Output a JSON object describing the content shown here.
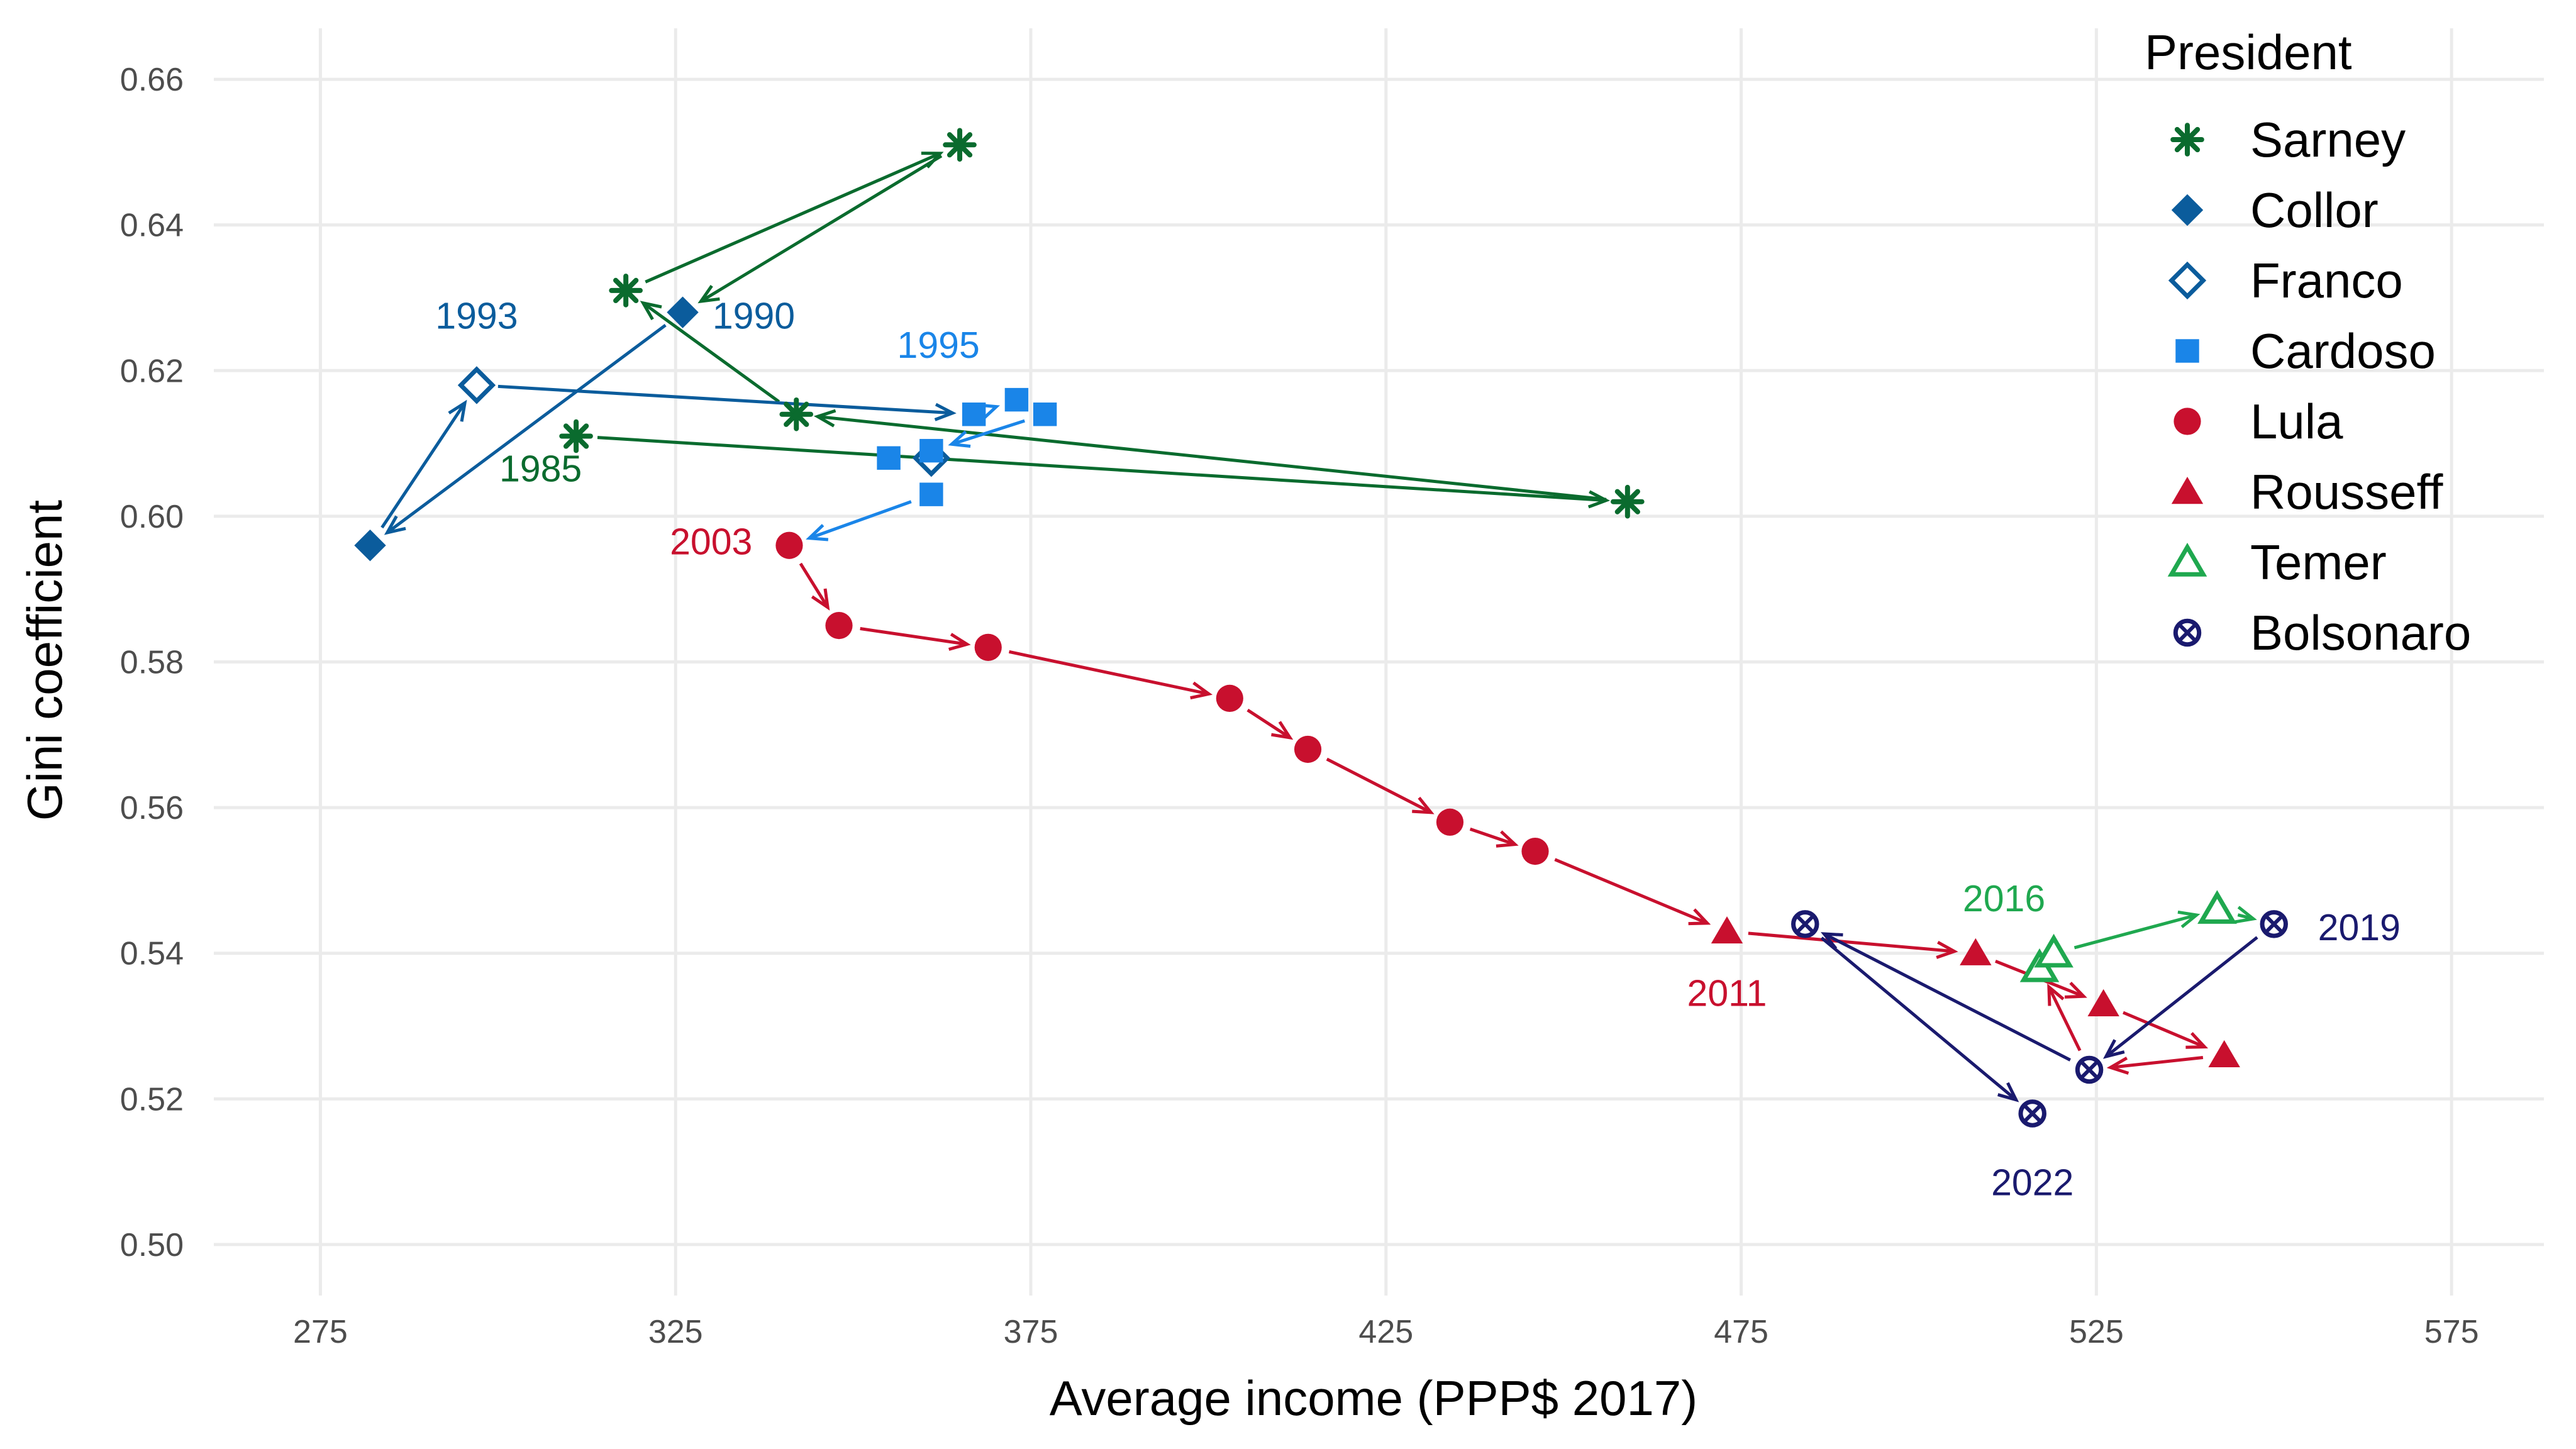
{
  "chart_data": {
    "type": "scatter",
    "xlabel": "Average income (PPP$ 2017)",
    "ylabel": "Gini coefficient",
    "xlim": [
      260,
      588
    ],
    "ylim": [
      0.493,
      0.667
    ],
    "xticks": [
      "275",
      "325",
      "375",
      "425",
      "475",
      "525",
      "575"
    ],
    "yticks": [
      "0.50",
      "0.52",
      "0.54",
      "0.56",
      "0.58",
      "0.60",
      "0.62",
      "0.64",
      "0.66"
    ],
    "grid": true,
    "legend": {
      "title": "President",
      "placement": "top-right"
    },
    "series": [
      {
        "name": "Sarney",
        "color": "#0a6b2e",
        "marker": "asterisk",
        "points": [
          [
            311,
            0.611
          ],
          [
            459,
            0.602
          ],
          [
            342,
            0.614
          ],
          [
            318,
            0.631
          ],
          [
            365,
            0.651
          ]
        ]
      },
      {
        "name": "Collor",
        "color": "#0b5c9c",
        "marker": "diamond-filled",
        "points": [
          [
            326,
            0.628
          ],
          [
            282,
            0.596
          ]
        ]
      },
      {
        "name": "Franco",
        "color": "#0b5c9c",
        "marker": "diamond-open",
        "points": [
          [
            297,
            0.618
          ],
          [
            361,
            0.608
          ]
        ]
      },
      {
        "name": "Cardoso",
        "color": "#1a85e8",
        "marker": "square",
        "points": [
          [
            367,
            0.614
          ],
          [
            373,
            0.616
          ],
          [
            377,
            0.614
          ],
          [
            361,
            0.609
          ],
          [
            355,
            0.608
          ],
          [
            361,
            0.603
          ]
        ]
      },
      {
        "name": "Lula",
        "color": "#c8102e",
        "marker": "circle",
        "points": [
          [
            341,
            0.596
          ],
          [
            348,
            0.585
          ],
          [
            369,
            0.582
          ],
          [
            403,
            0.575
          ],
          [
            414,
            0.568
          ],
          [
            434,
            0.558
          ],
          [
            446,
            0.554
          ]
        ]
      },
      {
        "name": "Rousseff",
        "color": "#c8102e",
        "marker": "triangle-filled",
        "points": [
          [
            473,
            0.543
          ],
          [
            508,
            0.54
          ],
          [
            526,
            0.533
          ],
          [
            543,
            0.526
          ]
        ]
      },
      {
        "name": "Temer",
        "color": "#1fa84f",
        "marker": "triangle-open",
        "points": [
          [
            517,
            0.538
          ],
          [
            519,
            0.54
          ],
          [
            542,
            0.546
          ]
        ]
      },
      {
        "name": "Bolsonaro",
        "color": "#1a1a6e",
        "marker": "circle-x",
        "points": [
          [
            550,
            0.544
          ],
          [
            524,
            0.524
          ],
          [
            484,
            0.544
          ],
          [
            516,
            0.518
          ]
        ]
      }
    ],
    "arrows": [
      {
        "color": "#0a6b2e",
        "from": [
          311,
          0.611
        ],
        "to": [
          459,
          0.602
        ]
      },
      {
        "color": "#0a6b2e",
        "from": [
          459,
          0.602
        ],
        "to": [
          342,
          0.614
        ]
      },
      {
        "color": "#0a6b2e",
        "from": [
          342,
          0.614
        ],
        "to": [
          318,
          0.631
        ]
      },
      {
        "color": "#0a6b2e",
        "from": [
          318,
          0.631
        ],
        "to": [
          365,
          0.651
        ]
      },
      {
        "color": "#0a6b2e",
        "from": [
          365,
          0.651
        ],
        "to": [
          326,
          0.628
        ]
      },
      {
        "color": "#0b5c9c",
        "from": [
          326,
          0.628
        ],
        "to": [
          282,
          0.596
        ]
      },
      {
        "color": "#0b5c9c",
        "from": [
          282,
          0.596
        ],
        "to": [
          297,
          0.618
        ]
      },
      {
        "color": "#0b5c9c",
        "from": [
          297,
          0.618
        ],
        "to": [
          367,
          0.614
        ]
      },
      {
        "color": "#1a85e8",
        "from": [
          367,
          0.614
        ],
        "to": [
          373,
          0.616
        ]
      },
      {
        "color": "#1a85e8",
        "from": [
          377,
          0.614
        ],
        "to": [
          361,
          0.609
        ]
      },
      {
        "color": "#1a85e8",
        "from": [
          361,
          0.603
        ],
        "to": [
          341,
          0.596
        ]
      },
      {
        "color": "#c8102e",
        "from": [
          341,
          0.596
        ],
        "to": [
          348,
          0.585
        ]
      },
      {
        "color": "#c8102e",
        "from": [
          348,
          0.585
        ],
        "to": [
          369,
          0.582
        ]
      },
      {
        "color": "#c8102e",
        "from": [
          369,
          0.582
        ],
        "to": [
          403,
          0.575
        ]
      },
      {
        "color": "#c8102e",
        "from": [
          403,
          0.575
        ],
        "to": [
          414,
          0.568
        ]
      },
      {
        "color": "#c8102e",
        "from": [
          414,
          0.568
        ],
        "to": [
          434,
          0.558
        ]
      },
      {
        "color": "#c8102e",
        "from": [
          434,
          0.558
        ],
        "to": [
          446,
          0.554
        ]
      },
      {
        "color": "#c8102e",
        "from": [
          446,
          0.554
        ],
        "to": [
          473,
          0.543
        ]
      },
      {
        "color": "#c8102e",
        "from": [
          473,
          0.543
        ],
        "to": [
          508,
          0.54
        ]
      },
      {
        "color": "#c8102e",
        "from": [
          508,
          0.54
        ],
        "to": [
          526,
          0.533
        ]
      },
      {
        "color": "#c8102e",
        "from": [
          526,
          0.533
        ],
        "to": [
          543,
          0.526
        ]
      },
      {
        "color": "#c8102e",
        "from": [
          543,
          0.526
        ],
        "to": [
          524,
          0.524
        ]
      },
      {
        "color": "#c8102e",
        "from": [
          524,
          0.524
        ],
        "to": [
          517,
          0.538
        ]
      },
      {
        "color": "#1fa84f",
        "from": [
          519,
          0.54
        ],
        "to": [
          542,
          0.546
        ]
      },
      {
        "color": "#1fa84f",
        "from": [
          542,
          0.546
        ],
        "to": [
          550,
          0.544
        ]
      },
      {
        "color": "#1a1a6e",
        "from": [
          550,
          0.544
        ],
        "to": [
          524,
          0.524
        ]
      },
      {
        "color": "#1a1a6e",
        "from": [
          524,
          0.524
        ],
        "to": [
          484,
          0.544
        ]
      },
      {
        "color": "#1a1a6e",
        "from": [
          484,
          0.544
        ],
        "to": [
          516,
          0.518
        ]
      }
    ],
    "annotations": [
      {
        "text": "1985",
        "x": 306,
        "y": 0.6065,
        "color": "#0a6b2e"
      },
      {
        "text": "1990",
        "x": 336,
        "y": 0.6275,
        "color": "#0b5c9c"
      },
      {
        "text": "1993",
        "x": 297,
        "y": 0.6275,
        "color": "#0b5c9c"
      },
      {
        "text": "1995",
        "x": 362,
        "y": 0.6235,
        "color": "#1a85e8"
      },
      {
        "text": "2003",
        "x": 330,
        "y": 0.5965,
        "color": "#c8102e"
      },
      {
        "text": "2011",
        "x": 473,
        "y": 0.5345,
        "color": "#c8102e"
      },
      {
        "text": "2016",
        "x": 512,
        "y": 0.5475,
        "color": "#1fa84f"
      },
      {
        "text": "2019",
        "x": 562,
        "y": 0.5435,
        "color": "#1a1a6e"
      },
      {
        "text": "2022",
        "x": 516,
        "y": 0.5085,
        "color": "#1a1a6e"
      }
    ]
  }
}
